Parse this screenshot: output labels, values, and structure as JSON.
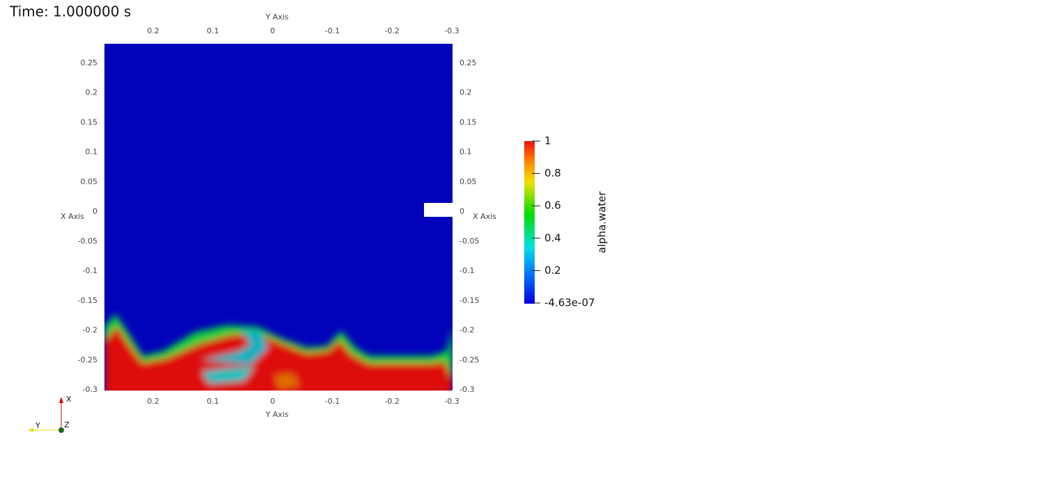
{
  "time_label": "Time: 1.000000 s",
  "axes": {
    "top_title": "Y Axis",
    "bottom_title": "Y Axis",
    "left_title": "X Axis",
    "right_title": "X Axis",
    "horizontal_ticks": [
      "0.2",
      "0.1",
      "0",
      "-0.1",
      "-0.2",
      "-0.3"
    ],
    "vertical_ticks": [
      "0.25",
      "0.2",
      "0.15",
      "0.1",
      "0.05",
      "0",
      "-0.05",
      "-0.1",
      "-0.15",
      "-0.2",
      "-0.25",
      "-0.3"
    ]
  },
  "colorbar": {
    "title": "alpha.water",
    "labels": [
      "1",
      "0.8",
      "0.6",
      "0.4",
      "0.2",
      "-4.63e-07"
    ]
  },
  "triad": {
    "x": "X",
    "y": "Y",
    "z": "Z"
  }
}
